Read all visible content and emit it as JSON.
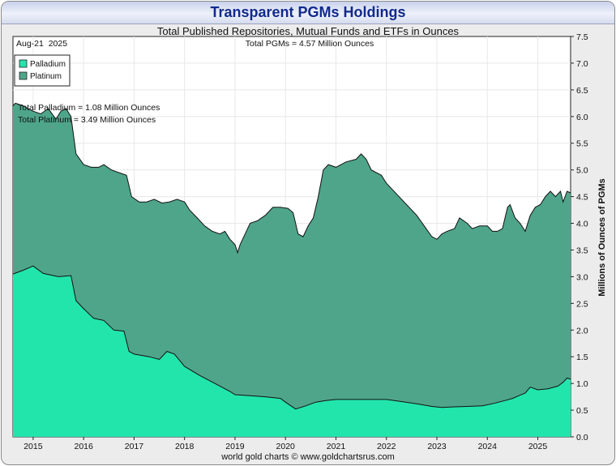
{
  "title": "Transparent PGMs Holdings",
  "subtitle": "Total Published Repositories, Mutual Funds and ETFs in Ounces",
  "date_label": "Aug-21  2025",
  "total_label": "Total PGMs = 4.57 Million Ounces",
  "palladium_total_label": "Total Palladium = 1.08 Million Ounces",
  "platinum_total_label": "Total Platinum = 3.49 Million Ounces",
  "footer": "world gold charts © www.goldchartsrus.com",
  "colors": {
    "palladium": "#22e5ac",
    "platinum": "#4fa58a",
    "background": "#ffffff",
    "grid": "#e8e8e8"
  },
  "chart_data": {
    "type": "area",
    "stacked": true,
    "title": "Transparent PGMs Holdings",
    "subtitle": "Total Published Repositories, Mutual Funds and ETFs in Ounces",
    "ylabel": "Millions of Ounces of PGMs",
    "ylim": [
      0,
      7.5
    ],
    "xlim": [
      2014.6,
      2025.65
    ],
    "y_ticks": [
      "0.0",
      "0.5",
      "1.0",
      "1.5",
      "2.0",
      "2.5",
      "3.0",
      "3.5",
      "4.0",
      "4.5",
      "5.0",
      "5.5",
      "6.0",
      "6.5",
      "7.0",
      "7.5"
    ],
    "x_ticks": [
      "2015",
      "2016",
      "2017",
      "2018",
      "2019",
      "2020",
      "2021",
      "2022",
      "2023",
      "2024",
      "2025"
    ],
    "grid": true,
    "legend_position": "top-left",
    "series": [
      {
        "name": "Palladium",
        "color": "#22e5ac",
        "points": [
          [
            2014.6,
            3.05
          ],
          [
            2014.8,
            3.12
          ],
          [
            2015.0,
            3.2
          ],
          [
            2015.2,
            3.06
          ],
          [
            2015.5,
            3.0
          ],
          [
            2015.75,
            3.02
          ],
          [
            2015.85,
            2.55
          ],
          [
            2016.0,
            2.4
          ],
          [
            2016.2,
            2.22
          ],
          [
            2016.4,
            2.18
          ],
          [
            2016.6,
            2.0
          ],
          [
            2016.8,
            1.98
          ],
          [
            2016.9,
            1.6
          ],
          [
            2017.0,
            1.55
          ],
          [
            2017.3,
            1.5
          ],
          [
            2017.5,
            1.45
          ],
          [
            2017.65,
            1.6
          ],
          [
            2017.8,
            1.55
          ],
          [
            2018.0,
            1.32
          ],
          [
            2018.3,
            1.15
          ],
          [
            2018.6,
            1.0
          ],
          [
            2018.9,
            0.85
          ],
          [
            2019.0,
            0.79
          ],
          [
            2019.3,
            0.77
          ],
          [
            2019.6,
            0.75
          ],
          [
            2019.9,
            0.72
          ],
          [
            2020.0,
            0.65
          ],
          [
            2020.2,
            0.52
          ],
          [
            2020.4,
            0.58
          ],
          [
            2020.6,
            0.65
          ],
          [
            2020.8,
            0.68
          ],
          [
            2021.0,
            0.7
          ],
          [
            2021.3,
            0.7
          ],
          [
            2021.6,
            0.7
          ],
          [
            2022.0,
            0.7
          ],
          [
            2022.3,
            0.66
          ],
          [
            2022.6,
            0.62
          ],
          [
            2022.9,
            0.57
          ],
          [
            2023.1,
            0.55
          ],
          [
            2023.3,
            0.56
          ],
          [
            2023.6,
            0.57
          ],
          [
            2023.9,
            0.58
          ],
          [
            2024.1,
            0.62
          ],
          [
            2024.35,
            0.68
          ],
          [
            2024.5,
            0.72
          ],
          [
            2024.65,
            0.78
          ],
          [
            2024.75,
            0.82
          ],
          [
            2024.85,
            0.93
          ],
          [
            2025.0,
            0.88
          ],
          [
            2025.2,
            0.9
          ],
          [
            2025.4,
            0.95
          ],
          [
            2025.5,
            1.02
          ],
          [
            2025.58,
            1.1
          ],
          [
            2025.65,
            1.08
          ]
        ]
      },
      {
        "name": "Platinum",
        "color": "#4fa58a",
        "total_points": [
          [
            2014.6,
            6.2
          ],
          [
            2014.65,
            6.25
          ],
          [
            2014.8,
            6.2
          ],
          [
            2015.0,
            6.1
          ],
          [
            2015.15,
            6.05
          ],
          [
            2015.3,
            6.15
          ],
          [
            2015.45,
            5.95
          ],
          [
            2015.55,
            6.1
          ],
          [
            2015.65,
            6.15
          ],
          [
            2015.75,
            6.0
          ],
          [
            2015.85,
            5.3
          ],
          [
            2016.0,
            5.1
          ],
          [
            2016.15,
            5.05
          ],
          [
            2016.3,
            5.05
          ],
          [
            2016.4,
            5.1
          ],
          [
            2016.55,
            5.0
          ],
          [
            2016.7,
            4.95
          ],
          [
            2016.85,
            4.9
          ],
          [
            2016.95,
            4.5
          ],
          [
            2017.1,
            4.4
          ],
          [
            2017.25,
            4.4
          ],
          [
            2017.4,
            4.45
          ],
          [
            2017.55,
            4.38
          ],
          [
            2017.7,
            4.4
          ],
          [
            2017.85,
            4.45
          ],
          [
            2018.0,
            4.4
          ],
          [
            2018.1,
            4.25
          ],
          [
            2018.25,
            4.1
          ],
          [
            2018.4,
            3.95
          ],
          [
            2018.55,
            3.85
          ],
          [
            2018.7,
            3.8
          ],
          [
            2018.8,
            3.85
          ],
          [
            2018.9,
            3.7
          ],
          [
            2019.0,
            3.6
          ],
          [
            2019.05,
            3.45
          ],
          [
            2019.1,
            3.6
          ],
          [
            2019.2,
            3.8
          ],
          [
            2019.3,
            4.0
          ],
          [
            2019.45,
            4.05
          ],
          [
            2019.6,
            4.15
          ],
          [
            2019.75,
            4.3
          ],
          [
            2019.9,
            4.3
          ],
          [
            2020.05,
            4.28
          ],
          [
            2020.15,
            4.2
          ],
          [
            2020.25,
            3.8
          ],
          [
            2020.35,
            3.75
          ],
          [
            2020.45,
            3.95
          ],
          [
            2020.55,
            4.1
          ],
          [
            2020.65,
            4.5
          ],
          [
            2020.75,
            5.0
          ],
          [
            2020.85,
            5.1
          ],
          [
            2021.0,
            5.05
          ],
          [
            2021.2,
            5.15
          ],
          [
            2021.4,
            5.2
          ],
          [
            2021.5,
            5.3
          ],
          [
            2021.6,
            5.2
          ],
          [
            2021.7,
            5.0
          ],
          [
            2021.9,
            4.9
          ],
          [
            2022.0,
            4.75
          ],
          [
            2022.2,
            4.55
          ],
          [
            2022.4,
            4.35
          ],
          [
            2022.6,
            4.15
          ],
          [
            2022.75,
            3.95
          ],
          [
            2022.9,
            3.75
          ],
          [
            2023.0,
            3.7
          ],
          [
            2023.1,
            3.8
          ],
          [
            2023.2,
            3.85
          ],
          [
            2023.35,
            3.9
          ],
          [
            2023.45,
            4.1
          ],
          [
            2023.6,
            4.0
          ],
          [
            2023.7,
            3.9
          ],
          [
            2023.85,
            3.95
          ],
          [
            2024.0,
            3.95
          ],
          [
            2024.1,
            3.85
          ],
          [
            2024.2,
            3.85
          ],
          [
            2024.3,
            3.9
          ],
          [
            2024.4,
            4.3
          ],
          [
            2024.45,
            4.35
          ],
          [
            2024.55,
            4.1
          ],
          [
            2024.65,
            4.0
          ],
          [
            2024.75,
            3.85
          ],
          [
            2024.85,
            4.15
          ],
          [
            2024.95,
            4.3
          ],
          [
            2025.05,
            4.35
          ],
          [
            2025.15,
            4.5
          ],
          [
            2025.25,
            4.6
          ],
          [
            2025.35,
            4.5
          ],
          [
            2025.45,
            4.6
          ],
          [
            2025.5,
            4.4
          ],
          [
            2025.58,
            4.6
          ],
          [
            2025.65,
            4.57
          ]
        ]
      }
    ]
  }
}
